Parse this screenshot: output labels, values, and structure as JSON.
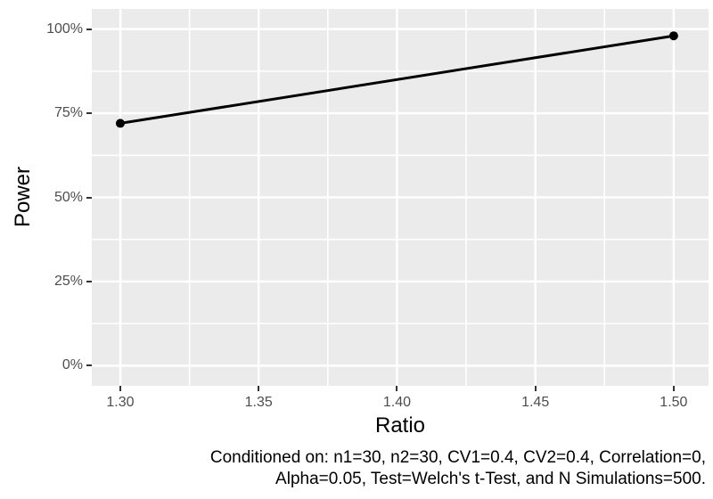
{
  "figure": {
    "background": "#FFFFFF"
  },
  "chart_data": {
    "type": "line",
    "title": "",
    "xlabel": "Ratio",
    "ylabel": "Power",
    "series": [
      {
        "name": "Power",
        "x": [
          1.3,
          1.5
        ],
        "y_percent": [
          72,
          98
        ],
        "color": "#000000",
        "line_width": 3,
        "point_radius": 5
      }
    ],
    "x_ticks": {
      "values": [
        1.3,
        1.35,
        1.4,
        1.45,
        1.5
      ],
      "labels": [
        "1.30",
        "1.35",
        "1.40",
        "1.45",
        "1.50"
      ]
    },
    "y_ticks": {
      "values": [
        0,
        25,
        50,
        75,
        100
      ],
      "labels": [
        "0%",
        "25%",
        "50%",
        "75%",
        "100%"
      ]
    },
    "x_minor": [
      1.325,
      1.375,
      1.425,
      1.475
    ],
    "y_minor": [
      12.5,
      37.5,
      62.5,
      87.5
    ],
    "xlim": [
      1.2897,
      1.5126
    ],
    "ylim": [
      -6,
      106
    ],
    "grid": "major+minor",
    "legend": "none",
    "colors": {
      "panel_bg": "#EBEBEB",
      "grid": "#FFFFFF",
      "tick_label": "#4D4D4D",
      "tick_mark": "#333333",
      "text": "#000000",
      "series": "#000000"
    }
  },
  "caption": {
    "line1": "Conditioned on: n1=30, n2=30, CV1=0.4, CV2=0.4, Correlation=0,",
    "line2": "Alpha=0.05, Test=Welch's t-Test, and N Simulations=500."
  }
}
